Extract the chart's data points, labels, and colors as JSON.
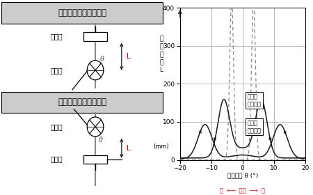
{
  "title_left_top": "横方向投光器角度特性",
  "title_left_bottom": "横方向受光器角度特性",
  "ylabel_chars": [
    "設",
    "定",
    "距",
    "離",
    "L"
  ],
  "ylabel_mm": "(mm)",
  "xlabel_main": "動作角度 θ (°)",
  "xlabel_center": "左  ←─────中心─────→  右",
  "xlim": [
    -20,
    20
  ],
  "ylim": [
    0,
    400
  ],
  "xticks": [
    -20,
    -10,
    0,
    10,
    20
  ],
  "yticks": [
    0,
    100,
    200,
    300,
    400
  ],
  "label_projector": "投光器\n角度特性",
  "label_receiver": "受光器\n角度特性",
  "bg_color": "#ffffff",
  "grid_color": "#999999",
  "curve_color": "#1a1a1a",
  "dashed_color": "#888888",
  "title_bg": "#cccccc",
  "red_color": "#cc0000"
}
